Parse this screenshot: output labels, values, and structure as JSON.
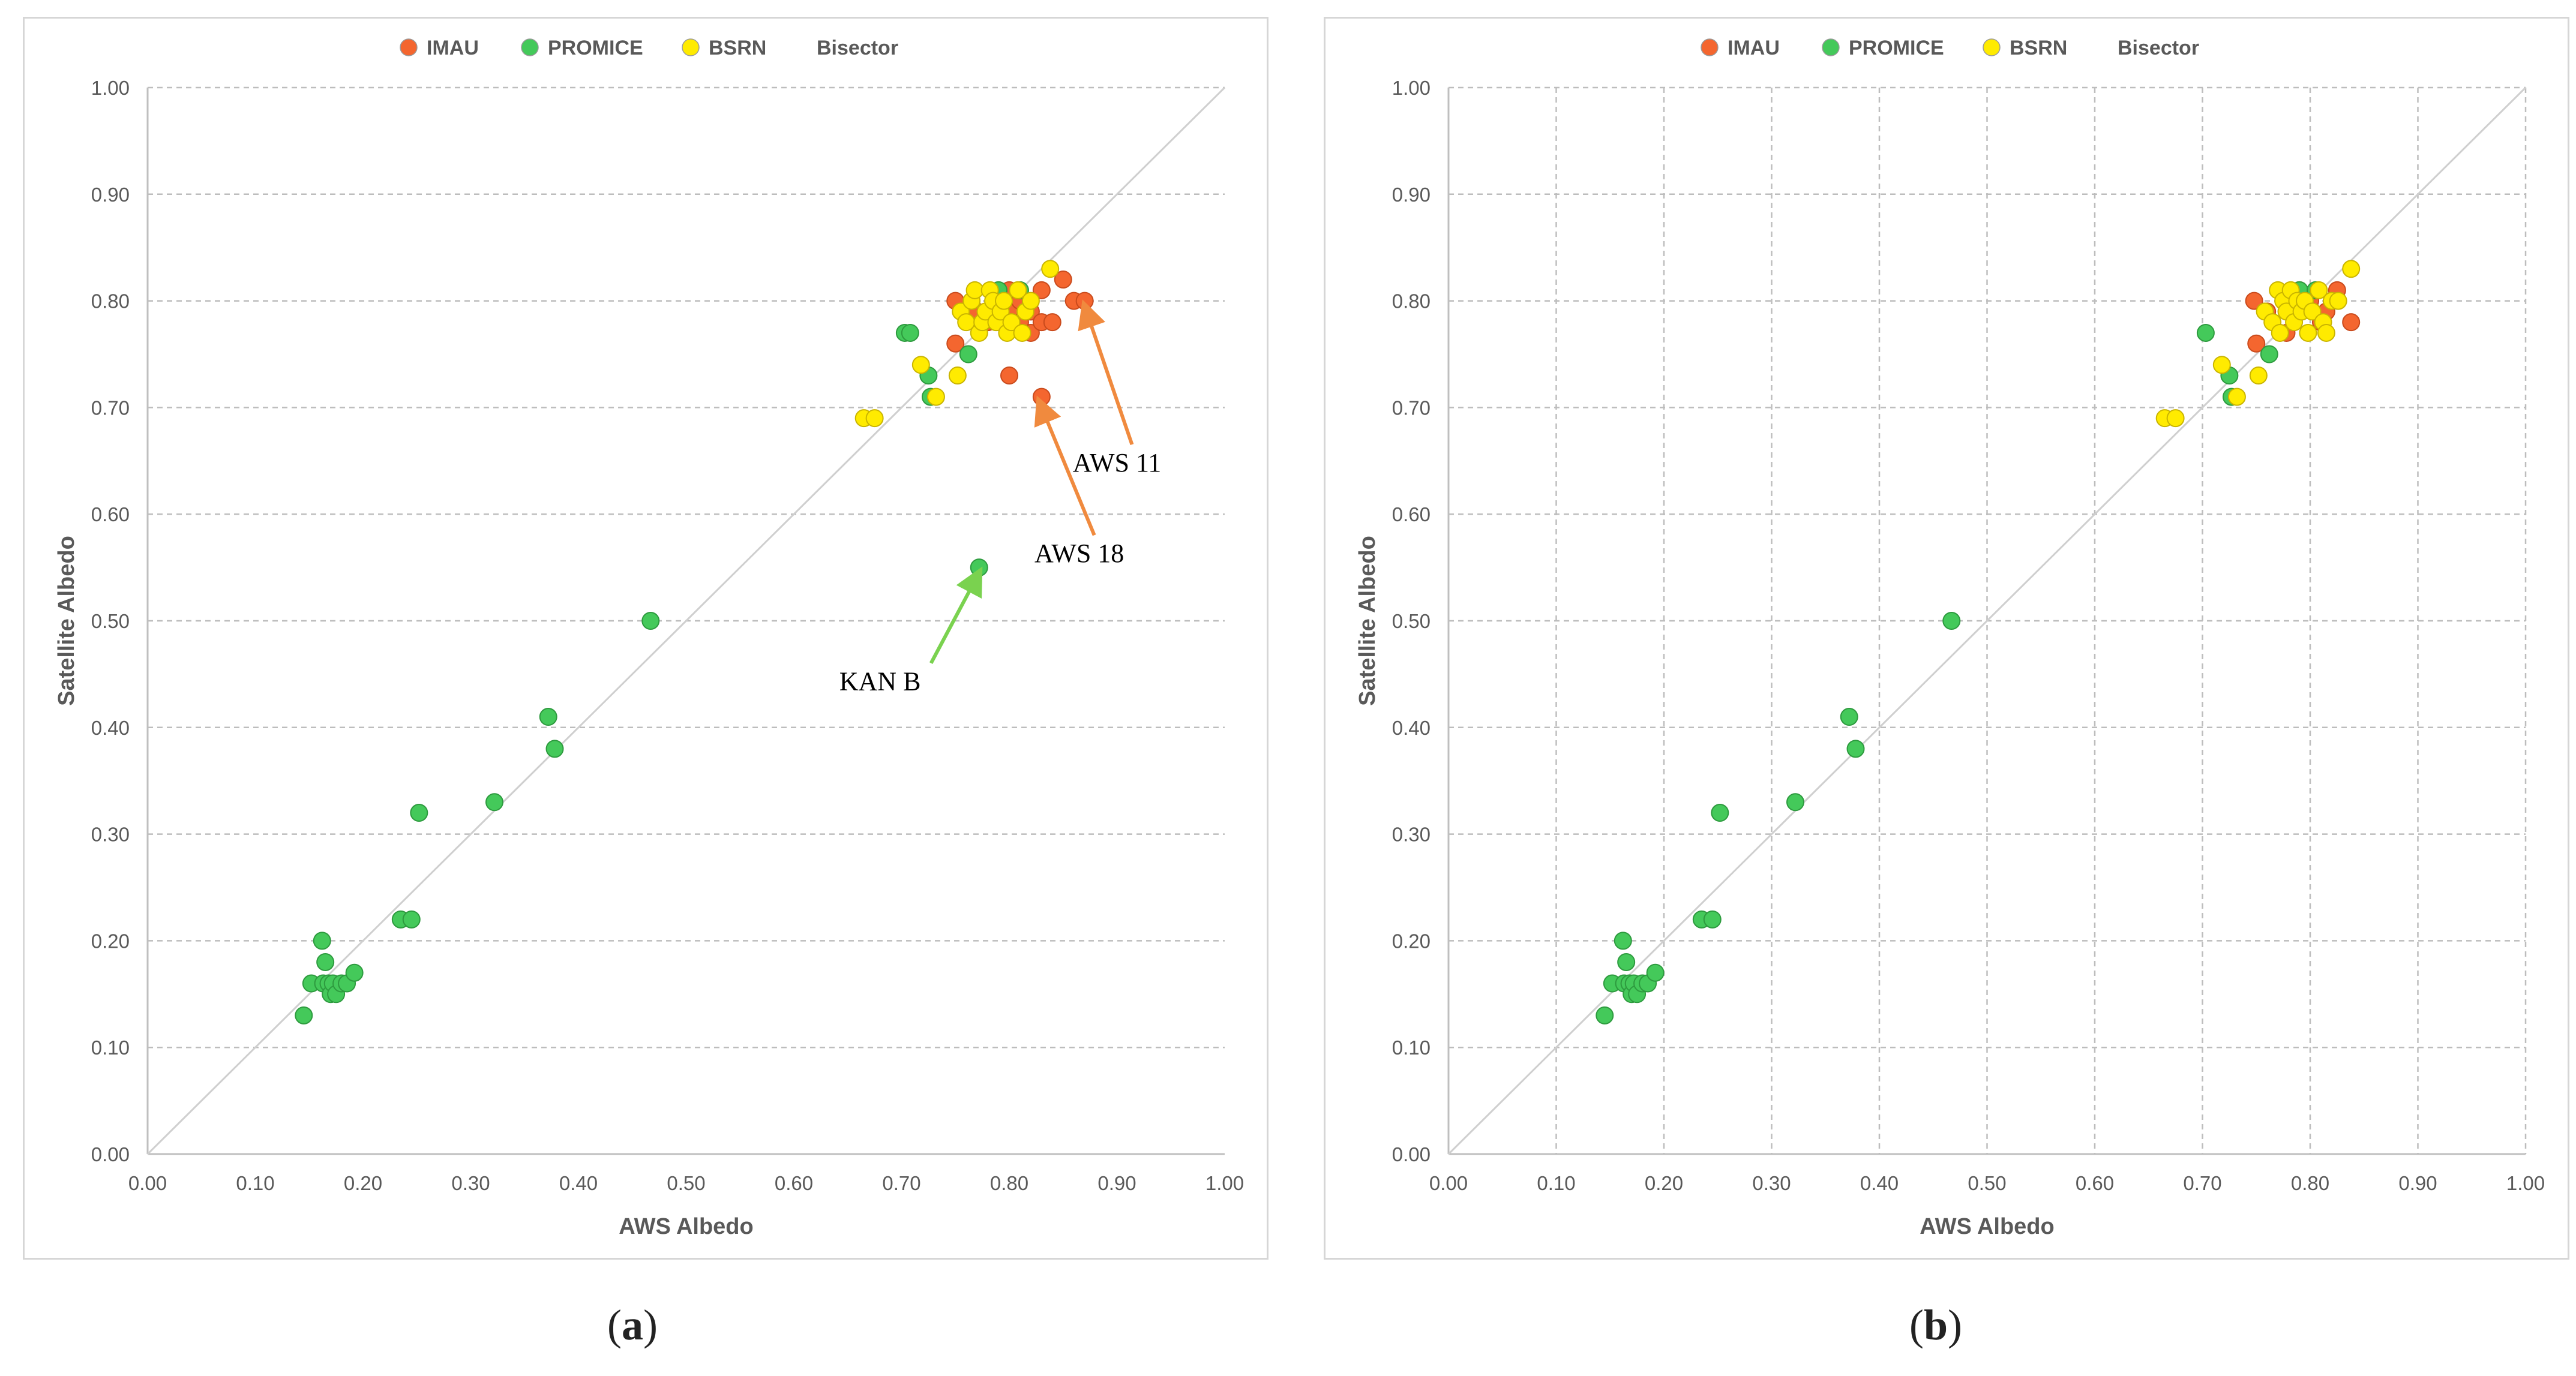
{
  "colors": {
    "IMAU": "#f4662f",
    "PROMICE": "#44c95a",
    "BSRN": "#ffeb00",
    "grid": "#bdbdbd",
    "bisector": "#cfcfcf",
    "arrow_imau": "#f08a3e",
    "arrow_promice": "#7ad24f"
  },
  "captions": {
    "a": "a",
    "b": "b"
  },
  "chart_data": [
    {
      "id": "a",
      "type": "scatter",
      "title": "",
      "xlabel": "AWS Albedo",
      "ylabel": "Satellite Albedo",
      "xlim": [
        0,
        1
      ],
      "ylim": [
        0,
        1
      ],
      "xticks": [
        "0.00",
        "0.10",
        "0.20",
        "0.30",
        "0.40",
        "0.50",
        "0.60",
        "0.70",
        "0.80",
        "0.90",
        "1.00"
      ],
      "yticks": [
        "0.00",
        "0.10",
        "0.20",
        "0.30",
        "0.40",
        "0.50",
        "0.60",
        "0.70",
        "0.80",
        "0.90",
        "1.00"
      ],
      "grid": "horizontal-dashed",
      "legend_position": "top-center",
      "legend": [
        "IMAU",
        "PROMICE",
        "BSRN",
        "Bisector"
      ],
      "series": [
        {
          "name": "IMAU",
          "color_key": "IMAU",
          "x": [
            0.75,
            0.75,
            0.76,
            0.77,
            0.78,
            0.79,
            0.8,
            0.8,
            0.81,
            0.81,
            0.82,
            0.82,
            0.83,
            0.83,
            0.84,
            0.85,
            0.86,
            0.87,
            0.8,
            0.83
          ],
          "y": [
            0.8,
            0.76,
            0.79,
            0.79,
            0.78,
            0.8,
            0.79,
            0.81,
            0.8,
            0.78,
            0.79,
            0.77,
            0.78,
            0.81,
            0.78,
            0.82,
            0.8,
            0.8,
            0.73,
            0.71
          ]
        },
        {
          "name": "PROMICE",
          "color_key": "PROMICE",
          "x": [
            0.145,
            0.152,
            0.162,
            0.163,
            0.165,
            0.168,
            0.17,
            0.172,
            0.175,
            0.18,
            0.185,
            0.192,
            0.235,
            0.245,
            0.252,
            0.322,
            0.372,
            0.378,
            0.467,
            0.703,
            0.708,
            0.725,
            0.727,
            0.762,
            0.772,
            0.79,
            0.81
          ],
          "y": [
            0.13,
            0.16,
            0.2,
            0.16,
            0.18,
            0.16,
            0.15,
            0.16,
            0.15,
            0.16,
            0.16,
            0.17,
            0.22,
            0.22,
            0.32,
            0.33,
            0.41,
            0.38,
            0.5,
            0.77,
            0.77,
            0.73,
            0.71,
            0.75,
            0.55,
            0.81,
            0.81
          ]
        },
        {
          "name": "BSRN",
          "color_key": "BSRN",
          "x": [
            0.665,
            0.675,
            0.718,
            0.732,
            0.752,
            0.755,
            0.76,
            0.765,
            0.768,
            0.772,
            0.775,
            0.778,
            0.782,
            0.785,
            0.788,
            0.792,
            0.795,
            0.798,
            0.802,
            0.808,
            0.812,
            0.815,
            0.82,
            0.838
          ],
          "y": [
            0.69,
            0.69,
            0.74,
            0.71,
            0.73,
            0.79,
            0.78,
            0.8,
            0.81,
            0.77,
            0.78,
            0.79,
            0.81,
            0.8,
            0.78,
            0.79,
            0.8,
            0.77,
            0.78,
            0.81,
            0.77,
            0.79,
            0.8,
            0.83
          ]
        }
      ],
      "annotations": [
        {
          "text": "AWS 11",
          "color_key": "arrow_imau",
          "point": [
            0.87,
            0.795
          ],
          "label_at": [
            0.9,
            0.64
          ]
        },
        {
          "text": "AWS 18",
          "color_key": "arrow_imau",
          "point": [
            0.828,
            0.705
          ],
          "label_at": [
            0.865,
            0.555
          ]
        },
        {
          "text": "KAN B",
          "color_key": "arrow_promice",
          "point": [
            0.772,
            0.545
          ],
          "label_at": [
            0.68,
            0.435
          ]
        }
      ]
    },
    {
      "id": "b",
      "type": "scatter",
      "title": "",
      "xlabel": "AWS Albedo",
      "ylabel": "Satellite Albedo",
      "xlim": [
        0,
        1
      ],
      "ylim": [
        0,
        1
      ],
      "xticks": [
        "0.00",
        "0.10",
        "0.20",
        "0.30",
        "0.40",
        "0.50",
        "0.60",
        "0.70",
        "0.80",
        "0.90",
        "1.00"
      ],
      "yticks": [
        "0.00",
        "0.10",
        "0.20",
        "0.30",
        "0.40",
        "0.50",
        "0.60",
        "0.70",
        "0.80",
        "0.90",
        "1.00"
      ],
      "grid": "both-dashed",
      "legend_position": "top-center",
      "legend": [
        "IMAU",
        "PROMICE",
        "BSRN",
        "Bisector"
      ],
      "series": [
        {
          "name": "IMAU",
          "color_key": "IMAU",
          "x": [
            0.748,
            0.75,
            0.76,
            0.778,
            0.79,
            0.8,
            0.81,
            0.815,
            0.82,
            0.825,
            0.838
          ],
          "y": [
            0.8,
            0.76,
            0.79,
            0.77,
            0.81,
            0.8,
            0.78,
            0.79,
            0.8,
            0.81,
            0.78
          ]
        },
        {
          "name": "PROMICE",
          "color_key": "PROMICE",
          "x": [
            0.145,
            0.152,
            0.162,
            0.163,
            0.165,
            0.168,
            0.17,
            0.172,
            0.175,
            0.18,
            0.185,
            0.192,
            0.235,
            0.245,
            0.252,
            0.322,
            0.372,
            0.378,
            0.467,
            0.703,
            0.725,
            0.727,
            0.762,
            0.79,
            0.805
          ],
          "y": [
            0.13,
            0.16,
            0.2,
            0.16,
            0.18,
            0.16,
            0.15,
            0.16,
            0.15,
            0.16,
            0.16,
            0.17,
            0.22,
            0.22,
            0.32,
            0.33,
            0.41,
            0.38,
            0.5,
            0.77,
            0.73,
            0.71,
            0.75,
            0.81,
            0.81
          ]
        },
        {
          "name": "BSRN",
          "color_key": "BSRN",
          "x": [
            0.665,
            0.675,
            0.718,
            0.732,
            0.752,
            0.758,
            0.765,
            0.77,
            0.772,
            0.775,
            0.778,
            0.782,
            0.785,
            0.788,
            0.792,
            0.795,
            0.798,
            0.802,
            0.808,
            0.812,
            0.815,
            0.82,
            0.826,
            0.838
          ],
          "y": [
            0.69,
            0.69,
            0.74,
            0.71,
            0.73,
            0.79,
            0.78,
            0.81,
            0.77,
            0.8,
            0.79,
            0.81,
            0.78,
            0.8,
            0.79,
            0.8,
            0.77,
            0.79,
            0.81,
            0.78,
            0.77,
            0.8,
            0.8,
            0.83
          ]
        }
      ],
      "annotations": []
    }
  ]
}
